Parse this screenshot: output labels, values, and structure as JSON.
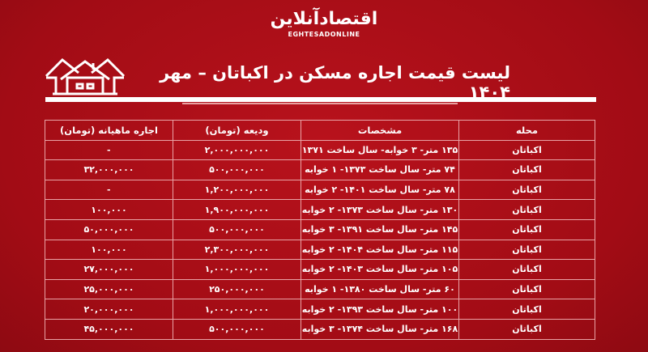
{
  "logo": {
    "fa": "اقتصادآنلاین",
    "en": "EGHTESADONLINE"
  },
  "icon": "houses-icon",
  "title": "لیست قیمت اجاره مسکن در اکباتان – مهر ۱۴۰۴",
  "table": {
    "headers": [
      "محله",
      "مشخصات",
      "ودیعه (تومان)",
      "اجاره ماهیانه (تومان)"
    ],
    "rows": [
      [
        "اکباتان",
        "۱۳۵ متر- ۳ خوابه- سال ساخت ۱۳۷۱",
        "۲,۰۰۰,۰۰۰,۰۰۰",
        "-"
      ],
      [
        "اکباتان",
        "۷۴ متر- سال ساخت ۱۳۷۳- ۱ خوابه",
        "۵۰۰,۰۰۰,۰۰۰",
        "۳۲,۰۰۰,۰۰۰"
      ],
      [
        "اکباتان",
        "۷۸ متر- سال ساخت ۱۴۰۱- ۲ خوابه",
        "۱,۲۰۰,۰۰۰,۰۰۰",
        "-"
      ],
      [
        "اکباتان",
        "۱۳۰ متر- سال ساخت ۱۳۷۳- ۲ خوابه",
        "۱,۹۰۰,۰۰۰,۰۰۰",
        "۱۰۰,۰۰۰"
      ],
      [
        "اکباتان",
        "۱۴۵ متر- سال ساخت ۱۳۹۱- ۳ خوابه",
        "۵۰۰,۰۰۰,۰۰۰",
        "۵۰,۰۰۰,۰۰۰"
      ],
      [
        "اکباتان",
        "۱۱۵ متر- سال ساخت ۱۴۰۴- ۲ خوابه",
        "۲,۳۰۰,۰۰۰,۰۰۰",
        "۱۰۰,۰۰۰"
      ],
      [
        "اکباتان",
        "۱۰۵ متر- سال ساخت ۱۴۰۳- ۲ خوابه",
        "۱,۰۰۰,۰۰۰,۰۰۰",
        "۲۷,۰۰۰,۰۰۰"
      ],
      [
        "اکباتان",
        "۶۰ متر- سال ساخت ۱۳۸۰- ۱ خوابه",
        "۲۵۰,۰۰۰,۰۰۰",
        "۲۵,۰۰۰,۰۰۰"
      ],
      [
        "اکباتان",
        "۱۰۰ متر- سال ساخت ۱۳۹۳- ۲ خوابه",
        "۱,۰۰۰,۰۰۰,۰۰۰",
        "۲۰,۰۰۰,۰۰۰"
      ],
      [
        "اکباتان",
        "۱۶۸ متر- سال ساخت ۱۳۷۴- ۳ خوابه",
        "۵۰۰,۰۰۰,۰۰۰",
        "۴۵,۰۰۰,۰۰۰"
      ]
    ]
  }
}
